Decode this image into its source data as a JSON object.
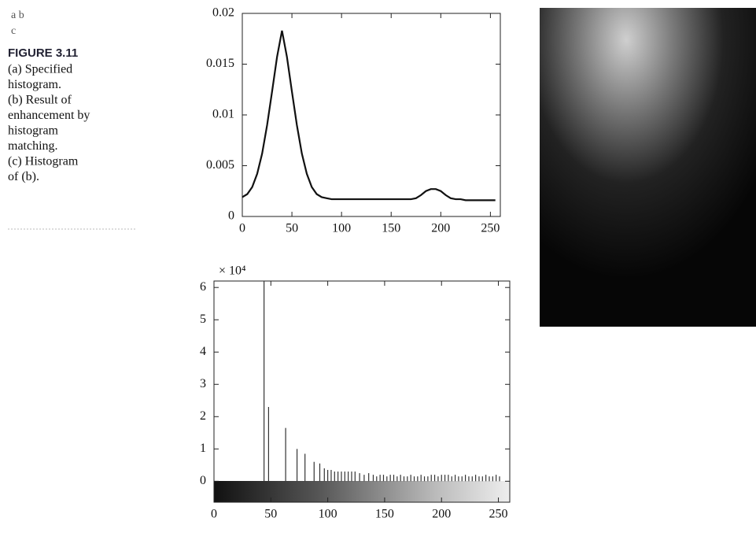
{
  "panel_labels": [
    "a b",
    "c"
  ],
  "figure": "FIGURE 3.11",
  "caption_lines": [
    "(a) Specified",
    "histogram.",
    "(b) Result of",
    "enhancement by",
    "histogram",
    "matching.",
    "(c) Histogram",
    "of (b)."
  ],
  "chart_data": [
    {
      "type": "line",
      "x": [
        0,
        5,
        10,
        15,
        20,
        25,
        30,
        35,
        40,
        45,
        50,
        55,
        60,
        65,
        70,
        75,
        80,
        85,
        90,
        95,
        100,
        105,
        110,
        115,
        120,
        125,
        130,
        135,
        140,
        145,
        150,
        155,
        160,
        165,
        170,
        175,
        180,
        185,
        190,
        195,
        200,
        205,
        210,
        215,
        220,
        225,
        230,
        235,
        240,
        245,
        250,
        255
      ],
      "values": [
        0.0019,
        0.0022,
        0.0029,
        0.0042,
        0.0062,
        0.009,
        0.0123,
        0.0157,
        0.0183,
        0.0157,
        0.0123,
        0.009,
        0.0062,
        0.0042,
        0.0029,
        0.0022,
        0.0019,
        0.0018,
        0.0017,
        0.0017,
        0.0017,
        0.0017,
        0.0017,
        0.0017,
        0.0017,
        0.0017,
        0.0017,
        0.0017,
        0.0017,
        0.0017,
        0.0017,
        0.0017,
        0.0017,
        0.0017,
        0.0017,
        0.0018,
        0.0021,
        0.0025,
        0.0027,
        0.0027,
        0.0025,
        0.0021,
        0.0018,
        0.0017,
        0.0017,
        0.0016,
        0.0016,
        0.0016,
        0.0016,
        0.0016,
        0.0016,
        0.0016
      ],
      "color": "#111111",
      "xlim": [
        0,
        260
      ],
      "xticks": [
        0,
        50,
        100,
        150,
        200,
        250
      ],
      "ylim": [
        0,
        0.02
      ],
      "yticks": [
        0,
        0.005,
        0.01,
        0.015,
        0.02
      ]
    },
    {
      "type": "bar",
      "annotation": "× 10⁴",
      "x": [
        44,
        48,
        63,
        73,
        80,
        88,
        93,
        97,
        100,
        103,
        106,
        109,
        112,
        115,
        118,
        121,
        124,
        128,
        132,
        136,
        140,
        143,
        146,
        149,
        152,
        155,
        158,
        161,
        164,
        167,
        170,
        173,
        176,
        179,
        182,
        185,
        188,
        191,
        194,
        197,
        200,
        203,
        206,
        209,
        212,
        215,
        218,
        221,
        224,
        227,
        230,
        233,
        236,
        239,
        242,
        245,
        248,
        251
      ],
      "values": [
        6.2,
        2.3,
        1.65,
        1.0,
        0.85,
        0.6,
        0.55,
        0.4,
        0.35,
        0.35,
        0.3,
        0.3,
        0.3,
        0.3,
        0.3,
        0.3,
        0.3,
        0.25,
        0.2,
        0.25,
        0.2,
        0.15,
        0.2,
        0.2,
        0.15,
        0.2,
        0.2,
        0.15,
        0.2,
        0.15,
        0.15,
        0.2,
        0.15,
        0.15,
        0.2,
        0.15,
        0.15,
        0.2,
        0.2,
        0.15,
        0.2,
        0.2,
        0.2,
        0.15,
        0.2,
        0.15,
        0.15,
        0.2,
        0.15,
        0.15,
        0.2,
        0.15,
        0.15,
        0.2,
        0.15,
        0.15,
        0.2,
        0.15
      ],
      "color": "#333333",
      "xlim": [
        0,
        260
      ],
      "xticks": [
        0,
        50,
        100,
        150,
        200,
        250
      ],
      "ylim": [
        -0.65,
        6.2
      ],
      "yticks": [
        0,
        1,
        2,
        3,
        4,
        5,
        6
      ]
    }
  ]
}
